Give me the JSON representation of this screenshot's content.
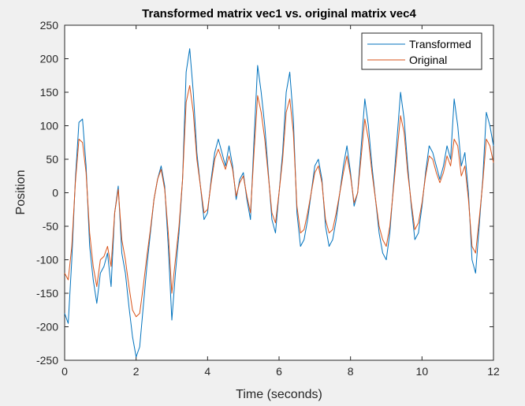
{
  "chart_data": {
    "type": "line",
    "title": "Transformed matrix vec1 vs. original matrix vec4",
    "xlabel": "Time (seconds)",
    "ylabel": "Position",
    "xlim": [
      0,
      12
    ],
    "ylim": [
      -250,
      250
    ],
    "xticks": [
      "0",
      "2",
      "4",
      "6",
      "8",
      "10",
      "12"
    ],
    "yticks": [
      "-250",
      "-200",
      "-150",
      "-100",
      "-50",
      "0",
      "50",
      "100",
      "150",
      "200",
      "250"
    ],
    "grid": false,
    "legend_position": "top-right",
    "x": [
      0.0,
      0.1,
      0.2,
      0.3,
      0.4,
      0.5,
      0.6,
      0.7,
      0.8,
      0.9,
      1.0,
      1.1,
      1.2,
      1.3,
      1.4,
      1.5,
      1.6,
      1.7,
      1.8,
      1.9,
      2.0,
      2.1,
      2.2,
      2.3,
      2.4,
      2.5,
      2.6,
      2.7,
      2.8,
      2.9,
      3.0,
      3.1,
      3.2,
      3.3,
      3.4,
      3.5,
      3.6,
      3.7,
      3.8,
      3.9,
      4.0,
      4.1,
      4.2,
      4.3,
      4.4,
      4.5,
      4.6,
      4.7,
      4.8,
      4.9,
      5.0,
      5.1,
      5.2,
      5.3,
      5.4,
      5.5,
      5.6,
      5.7,
      5.8,
      5.9,
      6.0,
      6.1,
      6.2,
      6.3,
      6.4,
      6.5,
      6.6,
      6.7,
      6.8,
      6.9,
      7.0,
      7.1,
      7.2,
      7.3,
      7.4,
      7.5,
      7.6,
      7.7,
      7.8,
      7.9,
      8.0,
      8.1,
      8.2,
      8.3,
      8.4,
      8.5,
      8.6,
      8.7,
      8.8,
      8.9,
      9.0,
      9.1,
      9.2,
      9.3,
      9.4,
      9.5,
      9.6,
      9.7,
      9.8,
      9.9,
      10.0,
      10.1,
      10.2,
      10.3,
      10.4,
      10.5,
      10.6,
      10.7,
      10.8,
      10.9,
      11.0,
      11.1,
      11.2,
      11.3,
      11.4,
      11.5,
      11.6,
      11.7,
      11.8,
      11.9,
      12.0
    ],
    "series": [
      {
        "name": "Transformed",
        "color": "#0072BD",
        "values": [
          -180,
          -195,
          -100,
          20,
          105,
          110,
          40,
          -80,
          -130,
          -165,
          -120,
          -110,
          -90,
          -140,
          -30,
          10,
          -90,
          -120,
          -170,
          -215,
          -245,
          -230,
          -170,
          -110,
          -60,
          -10,
          20,
          40,
          10,
          -80,
          -190,
          -120,
          -60,
          20,
          180,
          215,
          150,
          60,
          10,
          -40,
          -30,
          20,
          60,
          80,
          60,
          40,
          70,
          40,
          -10,
          20,
          30,
          -10,
          -40,
          80,
          190,
          150,
          100,
          30,
          -40,
          -60,
          0,
          60,
          150,
          180,
          110,
          -30,
          -80,
          -70,
          -40,
          0,
          40,
          50,
          20,
          -50,
          -80,
          -70,
          -40,
          0,
          40,
          70,
          30,
          -20,
          0,
          70,
          140,
          100,
          40,
          -10,
          -60,
          -90,
          -100,
          -60,
          10,
          80,
          150,
          110,
          40,
          -20,
          -70,
          -60,
          -20,
          30,
          70,
          60,
          40,
          20,
          40,
          70,
          50,
          140,
          100,
          40,
          60,
          0,
          -100,
          -120,
          -50,
          20,
          120,
          100,
          70
        ]
      },
      {
        "name": "Original",
        "color": "#D95319",
        "values": [
          -120,
          -130,
          -80,
          15,
          80,
          75,
          30,
          -60,
          -110,
          -140,
          -100,
          -95,
          -80,
          -110,
          -30,
          5,
          -70,
          -100,
          -140,
          -175,
          -185,
          -180,
          -140,
          -95,
          -55,
          -10,
          20,
          35,
          5,
          -60,
          -150,
          -100,
          -50,
          20,
          135,
          160,
          120,
          50,
          10,
          -30,
          -25,
          15,
          50,
          65,
          50,
          35,
          55,
          35,
          -5,
          15,
          25,
          -5,
          -30,
          60,
          145,
          120,
          80,
          25,
          -30,
          -45,
          0,
          50,
          120,
          140,
          90,
          -20,
          -60,
          -55,
          -30,
          0,
          30,
          40,
          15,
          -40,
          -60,
          -55,
          -30,
          0,
          30,
          55,
          25,
          -15,
          0,
          55,
          110,
          80,
          30,
          -10,
          -50,
          -70,
          -80,
          -50,
          5,
          60,
          115,
          90,
          30,
          -15,
          -55,
          -45,
          -15,
          25,
          55,
          50,
          30,
          15,
          30,
          55,
          40,
          80,
          70,
          25,
          40,
          -10,
          -80,
          -90,
          -40,
          15,
          80,
          70,
          45
        ]
      }
    ]
  }
}
